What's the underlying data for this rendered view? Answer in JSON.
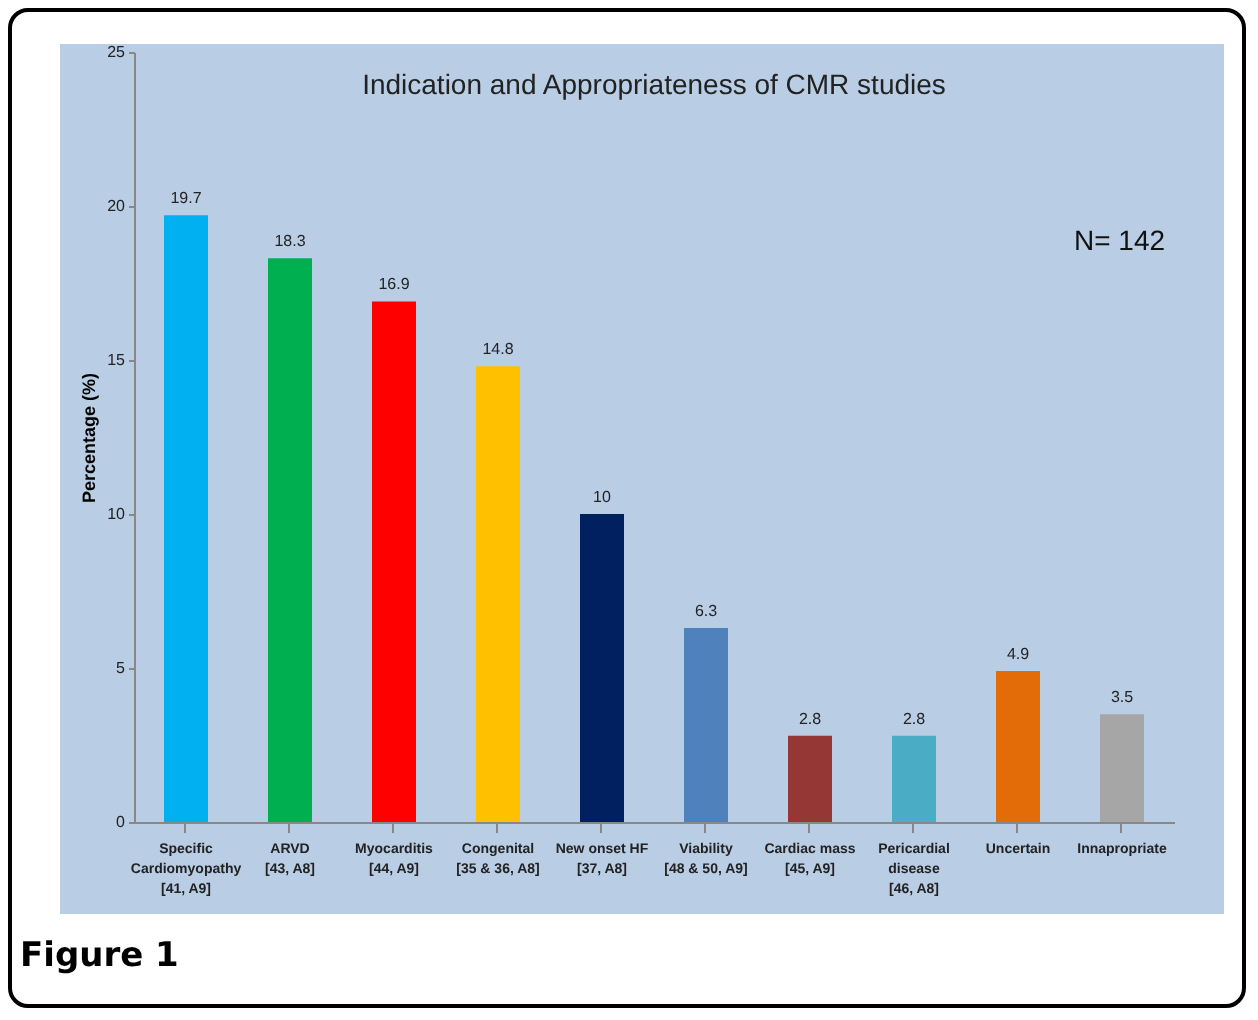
{
  "chart_data": {
    "type": "bar",
    "title": "Indication and Appropriateness of CMR studies",
    "ylabel": "Percentage (%)",
    "categories": [
      "Specific\nCardiomyopathy\n[41, A9]",
      "ARVD\n[43, A8]",
      "Myocarditis\n[44, A9]",
      "Congenital\n[35 & 36, A8]",
      "New onset HF\n[37, A8]",
      "Viability\n[48 & 50, A9]",
      "Cardiac mass\n[45, A9]",
      "Pericardial\ndisease\n[46, A8]",
      "Uncertain",
      "Innapropriate"
    ],
    "values": [
      19.7,
      18.3,
      16.9,
      14.8,
      10,
      6.3,
      2.8,
      2.8,
      4.9,
      3.5
    ],
    "colors": [
      "#00b0f0",
      "#00b050",
      "#ff0000",
      "#ffc000",
      "#002060",
      "#4f81bd",
      "#953735",
      "#4bacc6",
      "#e36c09",
      "#a6a6a6"
    ],
    "ylim": [
      0,
      25
    ],
    "yticks": [
      0,
      5,
      10,
      15,
      20,
      25
    ],
    "grid": false,
    "data_labels": true,
    "annotations": [
      "N= 142",
      "Figure 1"
    ]
  }
}
